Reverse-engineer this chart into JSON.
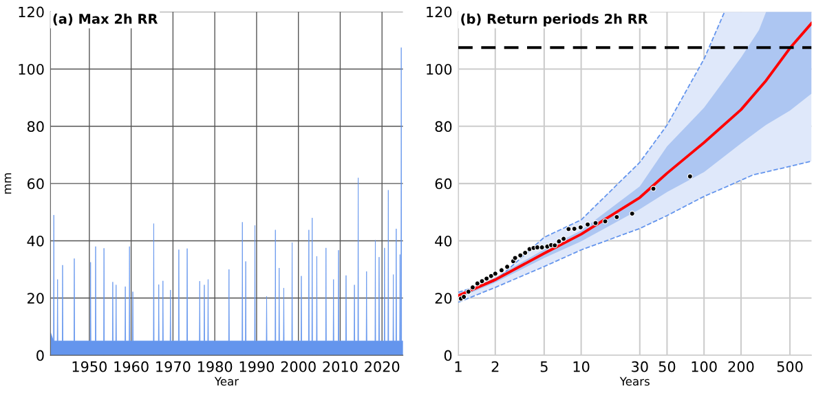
{
  "chart_data": [
    {
      "type": "area",
      "title": "(a) Max 2h RR",
      "xlabel": "Year",
      "ylabel": "mm",
      "color": "#6495ed",
      "grid": true,
      "x": [
        1940.7,
        1941.42,
        1941.5,
        1941.58,
        1942.32,
        1942.4,
        1942.48,
        1943.52,
        1943.6,
        1943.68,
        1946.32,
        1946.4,
        1946.48,
        1950.22,
        1950.3,
        1950.38,
        1951.42,
        1951.5,
        1951.58,
        1953.42,
        1953.5,
        1953.58,
        1955.52,
        1955.6,
        1955.68,
        1956.32,
        1956.4,
        1956.48,
        1958.52,
        1958.6,
        1958.68,
        1959.52,
        1959.6,
        1959.68,
        1960.32,
        1960.4,
        1960.48,
        1965.32,
        1965.4,
        1965.48,
        1966.52,
        1966.6,
        1966.68,
        1967.52,
        1967.6,
        1967.68,
        1969.32,
        1969.4,
        1969.48,
        1971.32,
        1971.4,
        1971.48,
        1973.32,
        1973.4,
        1973.48,
        1976.32,
        1976.4,
        1976.48,
        1977.42,
        1977.5,
        1977.58,
        1978.32,
        1978.4,
        1978.48,
        1983.32,
        1983.4,
        1983.48,
        1986.52,
        1986.6,
        1986.68,
        1987.32,
        1987.4,
        1987.48,
        1989.52,
        1989.6,
        1989.68,
        1992.32,
        1992.4,
        1992.48,
        1994.42,
        1994.5,
        1994.58,
        1995.32,
        1995.4,
        1995.48,
        1996.42,
        1996.5,
        1996.58,
        1998.42,
        1998.5,
        1998.58,
        2000.62,
        2000.7,
        2000.78,
        2002.42,
        2002.5,
        2002.58,
        2003.22,
        2003.3,
        2003.38,
        2004.32,
        2004.4,
        2004.48,
        2006.52,
        2006.6,
        2006.68,
        2008.32,
        2008.4,
        2008.48,
        2009.52,
        2009.6,
        2009.68,
        2011.32,
        2011.4,
        2011.48,
        2013.32,
        2013.4,
        2013.48,
        2014.22,
        2014.3,
        2014.38,
        2016.22,
        2016.3,
        2016.38,
        2018.32,
        2018.4,
        2018.48,
        2019.22,
        2019.3,
        2019.38,
        2020.52,
        2020.6,
        2020.68,
        2021.42,
        2021.5,
        2021.58,
        2022.62,
        2022.7,
        2022.78,
        2023.32,
        2023.4,
        2023.48,
        2024.22,
        2024.3,
        2024.38,
        2024.52,
        2024.6,
        2024.68,
        2025.0
      ],
      "values": [
        8,
        5,
        49.0,
        5,
        5,
        26.5,
        5,
        5,
        31.5,
        5,
        5,
        33.8,
        5,
        5,
        32.5,
        5,
        5,
        38.0,
        5,
        5,
        37.4,
        5,
        5,
        25.6,
        5,
        5,
        24.6,
        5,
        5,
        24.0,
        5,
        5,
        38.0,
        5,
        5,
        22.2,
        5,
        5,
        46.0,
        5,
        5,
        24.7,
        5,
        5,
        26.0,
        5,
        5,
        22.8,
        5,
        5,
        36.9,
        5,
        5,
        37.3,
        5,
        5,
        25.9,
        5,
        5,
        24.6,
        5,
        5,
        26.5,
        5,
        5,
        30.0,
        5,
        5,
        46.5,
        5,
        5,
        32.8,
        5,
        5,
        45.4,
        5,
        5,
        20.6,
        5,
        5,
        43.8,
        5,
        5,
        30.5,
        5,
        5,
        23.5,
        5,
        5,
        39.4,
        5,
        5,
        27.7,
        5,
        5,
        43.8,
        5,
        5,
        48.0,
        5,
        5,
        34.6,
        5,
        5,
        37.5,
        5,
        5,
        26.5,
        5,
        5,
        36.7,
        5,
        5,
        27.9,
        5,
        5,
        24.6,
        5,
        5,
        62.0,
        5,
        5,
        29.3,
        5,
        5,
        40.2,
        5,
        5,
        34.3,
        5,
        5,
        37.5,
        5,
        5,
        57.7,
        5,
        5,
        28.2,
        5,
        5,
        44.2,
        5,
        5,
        35.2,
        5,
        5,
        107.5,
        5,
        5
      ],
      "xlim": [
        1940.7,
        2025.0
      ],
      "ylim": [
        0,
        120
      ],
      "xticks": [
        1950,
        1960,
        1970,
        1980,
        1990,
        2000,
        2010,
        2020
      ],
      "yticks": [
        0,
        20,
        40,
        60,
        80,
        100,
        120
      ]
    },
    {
      "type": "line",
      "title": "(b) Return periods 2h RR",
      "xlabel": "Years",
      "log": "x",
      "grid": true,
      "xlim": [
        1,
        750
      ],
      "ylim": [
        0,
        120
      ],
      "xticks": [
        1,
        2,
        5,
        10,
        30,
        50,
        100,
        200,
        500
      ],
      "yticks": [
        0,
        20,
        40,
        60,
        80,
        100,
        120
      ],
      "ref_lines": [
        {
          "axis": "y",
          "value": 107.5,
          "color": "#000000",
          "line_style": "dashed"
        }
      ],
      "series": [
        {
          "type": "line",
          "line_style": "dashed",
          "color": "#6495ed",
          "x": [
            1,
            2,
            5,
            10,
            30,
            50,
            100,
            147,
            250,
            500,
            750
          ],
          "values": [
            18.5,
            23.7,
            31,
            36.8,
            44.3,
            48.8,
            55.5,
            58.6,
            63,
            66,
            67.8
          ],
          "lower": [
            18.5,
            23.7,
            31,
            36.8,
            44.3,
            48.8,
            55.5,
            58.6,
            63,
            66,
            67.8
          ],
          "upper": [
            22,
            26,
            41.2,
            47.3,
            67.4,
            80.4,
            103.5,
            120,
            120,
            120,
            120
          ]
        },
        {
          "type": "line",
          "line_style": "dashed",
          "color": "#6495ed",
          "x": [
            1,
            2,
            5,
            10,
            30,
            50,
            100,
            147
          ],
          "values": [
            22,
            26,
            41.2,
            47.3,
            67.4,
            80.4,
            103.5,
            120
          ]
        },
        {
          "type": "line",
          "line_style": "solid",
          "color": "#ff0000",
          "x": [
            1,
            2,
            5,
            10,
            30,
            50,
            100,
            200,
            280,
            320,
            500,
            750
          ],
          "values": [
            20.8,
            26.4,
            35.6,
            42.3,
            55.1,
            63.6,
            74.3,
            85.8,
            93.1,
            96,
            107.3,
            116
          ],
          "lower": [
            20,
            25.4,
            34,
            39.8,
            51,
            57,
            64,
            74,
            78.7,
            80.5,
            85.5,
            91.4
          ],
          "upper": [
            21.5,
            27.2,
            37,
            43.6,
            59,
            73,
            86.5,
            104,
            113.6,
            120,
            120,
            120
          ]
        },
        {
          "type": "scatter",
          "marker": "circle",
          "color": "#000000",
          "x": [
            1.05,
            1.11,
            1.21,
            1.31,
            1.43,
            1.56,
            1.7,
            1.85,
            2.0,
            2.25,
            2.5,
            2.8,
            2.9,
            3.2,
            3.5,
            3.8,
            4.1,
            4.4,
            4.8,
            5.3,
            5.7,
            6.1,
            6.6,
            7.2,
            7.9,
            8.8,
            9.9,
            11.3,
            13.1,
            15.7,
            19.5,
            26.0,
            38.7,
            76.9
          ],
          "values": [
            19.8,
            20.4,
            22.2,
            23.7,
            25.1,
            25.9,
            26.8,
            27.7,
            28.5,
            29.7,
            30.9,
            32.9,
            34.0,
            34.9,
            35.8,
            37.1,
            37.5,
            37.7,
            37.7,
            38.0,
            38.5,
            38.4,
            39.8,
            40.7,
            44.1,
            44.2,
            44.7,
            45.7,
            46.2,
            46.8,
            48.3,
            49.5,
            58.2,
            62.5
          ]
        }
      ]
    }
  ]
}
